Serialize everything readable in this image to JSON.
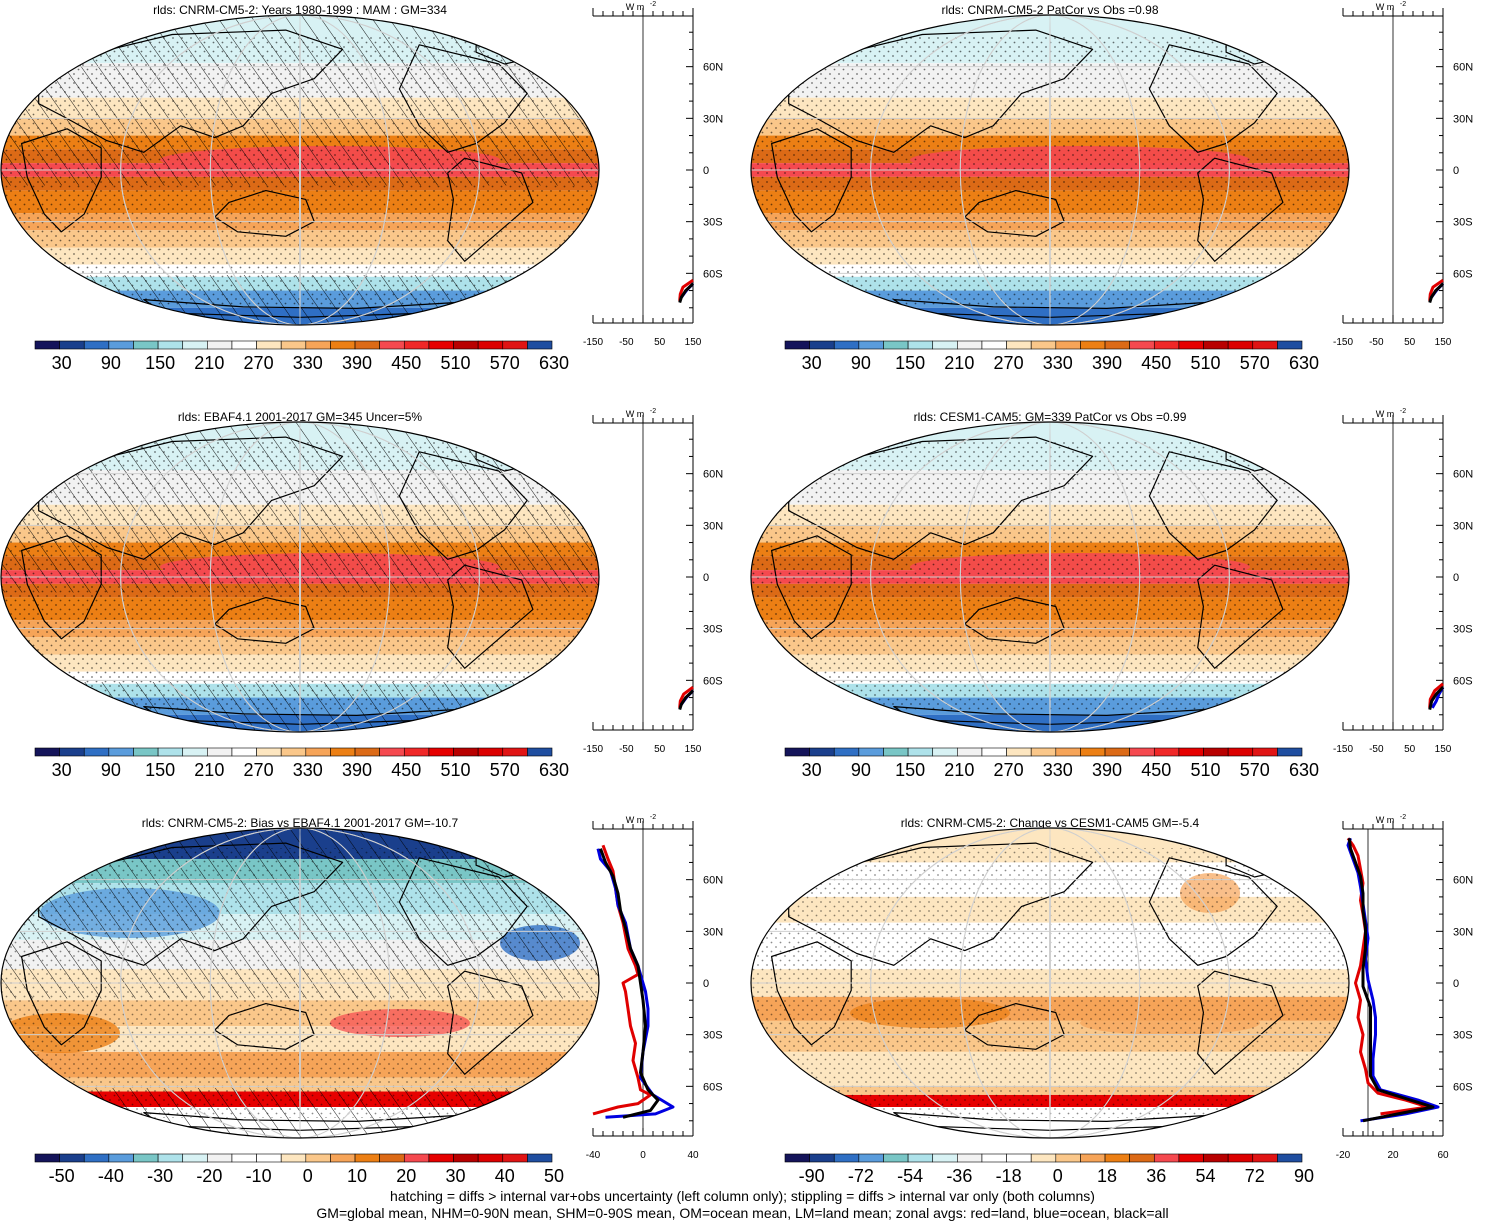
{
  "chart_data": [
    {
      "type": "map",
      "title": "rlds: CNRM-CM5-2: Years 1980-1999 : MAM : GM=334",
      "kind": "mean",
      "hatched": true,
      "colorbar": {
        "labels": [
          "30",
          "90",
          "150",
          "210",
          "270",
          "330",
          "390",
          "450",
          "510",
          "570",
          "630"
        ]
      },
      "zonal": {
        "unit": "W m",
        "unit_sup": "-2",
        "xticks": [
          "-150",
          "-50",
          "50",
          "150"
        ],
        "xlim": [
          -150,
          150
        ],
        "lat_labels": [
          "60N",
          "30N",
          "0",
          "30S",
          "60S"
        ],
        "series": [
          {
            "name": "land",
            "color": "#e00000",
            "points": [
              [
                150,
                -64
              ],
              [
                120,
                -68
              ],
              [
                112,
                -72
              ],
              [
                110,
                -76
              ]
            ]
          },
          {
            "name": "ocean",
            "color": "#0000e0",
            "points": [
              [
                150,
                -66
              ],
              [
                130,
                -70
              ],
              [
                115,
                -74
              ]
            ]
          },
          {
            "name": "all",
            "color": "#000000",
            "points": [
              [
                150,
                -66
              ],
              [
                128,
                -70
              ],
              [
                115,
                -74
              ],
              [
                110,
                -77
              ]
            ]
          }
        ]
      }
    },
    {
      "type": "map",
      "title": "rlds: CNRM-CM5-2 PatCor vs Obs =0.98",
      "kind": "mean",
      "hatched": false,
      "colorbar": {
        "labels": [
          "30",
          "90",
          "150",
          "210",
          "270",
          "330",
          "390",
          "450",
          "510",
          "570",
          "630"
        ]
      },
      "zonal": {
        "unit": "W m",
        "unit_sup": "-2",
        "xticks": [
          "-150",
          "-50",
          "50",
          "150"
        ],
        "xlim": [
          -150,
          150
        ],
        "lat_labels": [
          "60N",
          "30N",
          "0",
          "30S",
          "60S"
        ],
        "series": [
          {
            "name": "land",
            "color": "#e00000",
            "points": [
              [
                150,
                -64
              ],
              [
                120,
                -68
              ],
              [
                112,
                -72
              ],
              [
                110,
                -76
              ]
            ]
          },
          {
            "name": "ocean",
            "color": "#0000e0",
            "points": [
              [
                150,
                -66
              ],
              [
                130,
                -70
              ],
              [
                115,
                -74
              ]
            ]
          },
          {
            "name": "all",
            "color": "#000000",
            "points": [
              [
                150,
                -66
              ],
              [
                128,
                -70
              ],
              [
                115,
                -74
              ],
              [
                110,
                -77
              ]
            ]
          }
        ]
      }
    },
    {
      "type": "map",
      "title": "rlds: EBAF4.1 2001-2017 GM=345 Uncer=5%",
      "kind": "mean",
      "hatched": true,
      "colorbar": {
        "labels": [
          "30",
          "90",
          "150",
          "210",
          "270",
          "330",
          "390",
          "450",
          "510",
          "570",
          "630"
        ]
      },
      "zonal": {
        "unit": "W m",
        "unit_sup": "-2",
        "xticks": [
          "-150",
          "-50",
          "50",
          "150"
        ],
        "xlim": [
          -150,
          150
        ],
        "lat_labels": [
          "60N",
          "30N",
          "0",
          "30S",
          "60S"
        ],
        "series": [
          {
            "name": "land",
            "color": "#e00000",
            "points": [
              [
                150,
                -64
              ],
              [
                122,
                -68
              ],
              [
                112,
                -72
              ],
              [
                110,
                -76
              ]
            ]
          },
          {
            "name": "ocean",
            "color": "#0000e0",
            "points": [
              [
                150,
                -66
              ],
              [
                130,
                -70
              ],
              [
                115,
                -74
              ]
            ]
          },
          {
            "name": "all",
            "color": "#000000",
            "points": [
              [
                150,
                -66
              ],
              [
                128,
                -70
              ],
              [
                115,
                -74
              ],
              [
                110,
                -77
              ]
            ]
          }
        ]
      }
    },
    {
      "type": "map",
      "title": "rlds: CESM1-CAM5: GM=339 PatCor vs Obs =0.99",
      "kind": "mean",
      "hatched": false,
      "colorbar": {
        "labels": [
          "30",
          "90",
          "150",
          "210",
          "270",
          "330",
          "390",
          "450",
          "510",
          "570",
          "630"
        ]
      },
      "zonal": {
        "unit": "W m",
        "unit_sup": "-2",
        "xticks": [
          "-150",
          "-50",
          "50",
          "150"
        ],
        "xlim": [
          -150,
          150
        ],
        "lat_labels": [
          "60N",
          "30N",
          "0",
          "30S",
          "60S"
        ],
        "series": [
          {
            "name": "land",
            "color": "#e00000",
            "points": [
              [
                150,
                -62
              ],
              [
                125,
                -66
              ],
              [
                112,
                -71
              ],
              [
                110,
                -76
              ]
            ]
          },
          {
            "name": "ocean",
            "color": "#0000e0",
            "points": [
              [
                150,
                -64
              ],
              [
                138,
                -68
              ],
              [
                130,
                -72
              ],
              [
                118,
                -76
              ]
            ]
          },
          {
            "name": "all",
            "color": "#000000",
            "points": [
              [
                150,
                -64
              ],
              [
                130,
                -68
              ],
              [
                116,
                -72
              ],
              [
                110,
                -77
              ]
            ]
          }
        ]
      }
    },
    {
      "type": "map",
      "title": "rlds: CNRM-CM5-2: Bias vs EBAF4.1 2001-2017 GM=-10.7",
      "kind": "bias",
      "hatched": true,
      "colorbar": {
        "labels": [
          "-50",
          "-40",
          "-30",
          "-20",
          "-10",
          "0",
          "10",
          "20",
          "30",
          "40",
          "50"
        ]
      },
      "zonal": {
        "unit": "W m",
        "unit_sup": "-2",
        "xticks": [
          "-40",
          "0",
          "40"
        ],
        "xlim": [
          -40,
          40
        ],
        "lat_labels": [
          "60N",
          "30N",
          "0",
          "30S",
          "60S"
        ],
        "series": [
          {
            "name": "land",
            "color": "#e00000",
            "points": [
              [
                -32,
                80
              ],
              [
                -28,
                72
              ],
              [
                -24,
                65
              ],
              [
                -22,
                55
              ],
              [
                -20,
                45
              ],
              [
                -16,
                35
              ],
              [
                -12,
                20
              ],
              [
                -6,
                10
              ],
              [
                -4,
                5
              ],
              [
                -16,
                0
              ],
              [
                -14,
                -5
              ],
              [
                -12,
                -15
              ],
              [
                -10,
                -25
              ],
              [
                -6,
                -35
              ],
              [
                -8,
                -45
              ],
              [
                -4,
                -55
              ],
              [
                -2,
                -62
              ],
              [
                6,
                -65
              ],
              [
                -4,
                -70
              ],
              [
                -20,
                -72
              ],
              [
                -40,
                -76
              ]
            ]
          },
          {
            "name": "ocean",
            "color": "#0000e0",
            "points": [
              [
                -36,
                78
              ],
              [
                -34,
                72
              ],
              [
                -26,
                65
              ],
              [
                -22,
                55
              ],
              [
                -20,
                45
              ],
              [
                -14,
                35
              ],
              [
                -10,
                20
              ],
              [
                -4,
                10
              ],
              [
                0,
                0
              ],
              [
                2,
                -5
              ],
              [
                4,
                -15
              ],
              [
                4,
                -25
              ],
              [
                0,
                -40
              ],
              [
                -2,
                -55
              ],
              [
                8,
                -65
              ],
              [
                24,
                -72
              ],
              [
                10,
                -76
              ],
              [
                -30,
                -78
              ]
            ]
          },
          {
            "name": "all",
            "color": "#000000",
            "points": [
              [
                -34,
                78
              ],
              [
                -30,
                70
              ],
              [
                -24,
                62
              ],
              [
                -20,
                52
              ],
              [
                -18,
                42
              ],
              [
                -14,
                32
              ],
              [
                -10,
                20
              ],
              [
                -4,
                10
              ],
              [
                -2,
                0
              ],
              [
                0,
                -10
              ],
              [
                2,
                -25
              ],
              [
                0,
                -40
              ],
              [
                -2,
                -52
              ],
              [
                4,
                -62
              ],
              [
                12,
                -68
              ],
              [
                6,
                -74
              ],
              [
                -16,
                -78
              ]
            ]
          }
        ]
      }
    },
    {
      "type": "map",
      "title": "rlds: CNRM-CM5-2: Change vs CESM1-CAM5 GM=-5.4",
      "kind": "change",
      "hatched": false,
      "colorbar": {
        "labels": [
          "-90",
          "-72",
          "-54",
          "-36",
          "-18",
          "0",
          "18",
          "36",
          "54",
          "72",
          "90"
        ]
      },
      "zonal": {
        "unit": "W m",
        "unit_sup": "-2",
        "xticks": [
          "-20",
          "20",
          "60"
        ],
        "xlim": [
          -20,
          60
        ],
        "lat_labels": [
          "60N",
          "30N",
          "0",
          "30S",
          "60S"
        ],
        "series": [
          {
            "name": "land",
            "color": "#e00000",
            "points": [
              [
                -16,
                84
              ],
              [
                -12,
                80
              ],
              [
                -8,
                74
              ],
              [
                -6,
                66
              ],
              [
                -4,
                58
              ],
              [
                -6,
                48
              ],
              [
                -4,
                40
              ],
              [
                -2,
                30
              ],
              [
                -4,
                20
              ],
              [
                -6,
                10
              ],
              [
                -10,
                0
              ],
              [
                -6,
                -10
              ],
              [
                -8,
                -20
              ],
              [
                -4,
                -30
              ],
              [
                -6,
                -40
              ],
              [
                -2,
                -50
              ],
              [
                0,
                -58
              ],
              [
                8,
                -64
              ],
              [
                30,
                -68
              ],
              [
                48,
                -72
              ],
              [
                10,
                -76
              ]
            ]
          },
          {
            "name": "ocean",
            "color": "#0000e0",
            "points": [
              [
                -14,
                84
              ],
              [
                -16,
                80
              ],
              [
                -12,
                72
              ],
              [
                -8,
                64
              ],
              [
                -6,
                56
              ],
              [
                -4,
                46
              ],
              [
                -2,
                36
              ],
              [
                0,
                26
              ],
              [
                -2,
                14
              ],
              [
                0,
                2
              ],
              [
                4,
                -10
              ],
              [
                6,
                -20
              ],
              [
                6,
                -30
              ],
              [
                4,
                -44
              ],
              [
                4,
                -54
              ],
              [
                10,
                -62
              ],
              [
                40,
                -68
              ],
              [
                56,
                -72
              ],
              [
                30,
                -76
              ],
              [
                -6,
                -80
              ]
            ]
          },
          {
            "name": "all",
            "color": "#000000",
            "points": [
              [
                -15,
                84
              ],
              [
                -14,
                78
              ],
              [
                -10,
                70
              ],
              [
                -6,
                62
              ],
              [
                -4,
                52
              ],
              [
                -4,
                42
              ],
              [
                -2,
                32
              ],
              [
                -2,
                20
              ],
              [
                -4,
                8
              ],
              [
                -4,
                -2
              ],
              [
                2,
                -14
              ],
              [
                2,
                -28
              ],
              [
                2,
                -42
              ],
              [
                2,
                -54
              ],
              [
                8,
                -62
              ],
              [
                34,
                -68
              ],
              [
                52,
                -72
              ],
              [
                24,
                -76
              ],
              [
                -4,
                -80
              ]
            ]
          }
        ]
      }
    }
  ],
  "footer": {
    "line1": "hatching = diffs > internal var+obs uncertainty (left column only); stippling = diffs > internal var only (both columns)",
    "line2": "GM=global mean, NHM=0-90N mean, SHM=0-90S mean, OM=ocean mean, LM=land mean; zonal avgs: red=land, blue=ocean, black=all"
  },
  "colors": {
    "palette": [
      "#14145a",
      "#1a3f8c",
      "#2f6fc4",
      "#5a9cdc",
      "#79c6c6",
      "#aee2ea",
      "#d8f2f4",
      "#f2f2f2",
      "#ffffff",
      "#fde6c0",
      "#fac78a",
      "#f6a458",
      "#ec7f14",
      "#dc6a16",
      "#f5494f",
      "#f02828",
      "#e60000",
      "#b80000",
      "#dc0000",
      "#e01414",
      "#c80000",
      "#1f4ea0"
    ],
    "land_outline": "#000000",
    "graticule": "#cfcfcf"
  }
}
